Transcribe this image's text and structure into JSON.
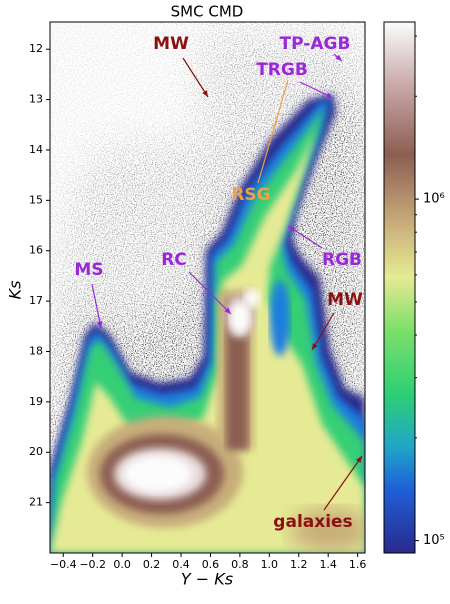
{
  "chart_data": {
    "type": "density",
    "title": "SMC CMD",
    "x_label": "Y − Ks",
    "y_label": "Ks",
    "xlim": [
      -0.49,
      1.65
    ],
    "ylim": [
      11.46,
      22.0
    ],
    "y_inverted": true,
    "xticks": [
      {
        "value": -0.4,
        "label": "−0.4"
      },
      {
        "value": -0.2,
        "label": "−0.2"
      },
      {
        "value": 0,
        "label": "0.0"
      },
      0.2,
      0.4,
      0.6,
      0.8,
      {
        "value": 1,
        "label": "1.0"
      },
      1.2,
      1.4,
      1.6
    ],
    "yticks": [
      12,
      13,
      14,
      15,
      16,
      17,
      18,
      19,
      20,
      21
    ],
    "colorbar": {
      "log_scale": true,
      "lim": [
        92000,
        3300000
      ],
      "ticks": [
        {
          "value": 100000,
          "label": "10⁵"
        },
        {
          "value": 1000000,
          "label": "10⁶"
        }
      ],
      "minor_ticks": [
        200000,
        300000,
        400000,
        500000,
        600000,
        700000,
        800000,
        900000,
        2000000,
        3000000
      ]
    },
    "annotations": [
      {
        "text": "MW",
        "color": "#8b1010"
      },
      {
        "text": "TP-AGB",
        "color": "#9a28d8"
      },
      {
        "text": "TRGB",
        "color": "#9a28d8"
      },
      {
        "text": "RSG",
        "color": "#f0a040"
      },
      {
        "text": "RC",
        "color": "#9a28d8"
      },
      {
        "text": "MS",
        "color": "#9a28d8"
      },
      {
        "text": "RGB",
        "color": "#9a28d8"
      },
      {
        "text": "MW",
        "color": "#8b1010"
      },
      {
        "text": "galaxies",
        "color": "#8b1010"
      }
    ]
  }
}
